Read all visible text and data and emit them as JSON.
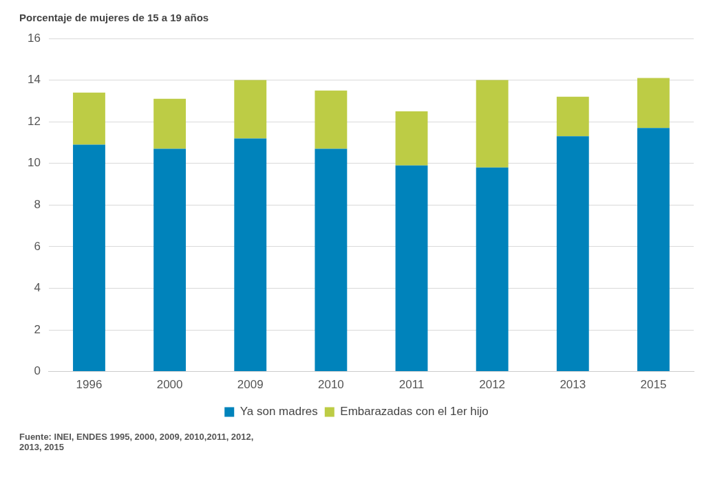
{
  "chart_data": {
    "type": "bar",
    "title": "Porcentaje de mujeres de 15 a 19 años",
    "categories": [
      "1996",
      "2000",
      "2009",
      "2010",
      "2011",
      "2012",
      "2013",
      "2015"
    ],
    "series": [
      {
        "name": "Ya son madres",
        "color": "#0083bb",
        "values": [
          10.9,
          10.7,
          11.2,
          10.7,
          9.9,
          9.8,
          11.3,
          11.7
        ]
      },
      {
        "name": "Embarazadas con el 1er hijo",
        "color": "#bdcc45",
        "values": [
          2.5,
          2.4,
          2.8,
          2.8,
          2.6,
          4.2,
          1.9,
          2.4
        ]
      }
    ],
    "stacked": true,
    "ylim": [
      0,
      16
    ],
    "yticks": [
      0,
      2,
      4,
      6,
      8,
      10,
      12,
      14,
      16
    ],
    "grid": "y",
    "legend": "bottom",
    "annotations": [
      "Fuente: INEI, ENDES 1995, 2000, 2009, 2010,2011, 2012, 2013, 2015"
    ]
  }
}
